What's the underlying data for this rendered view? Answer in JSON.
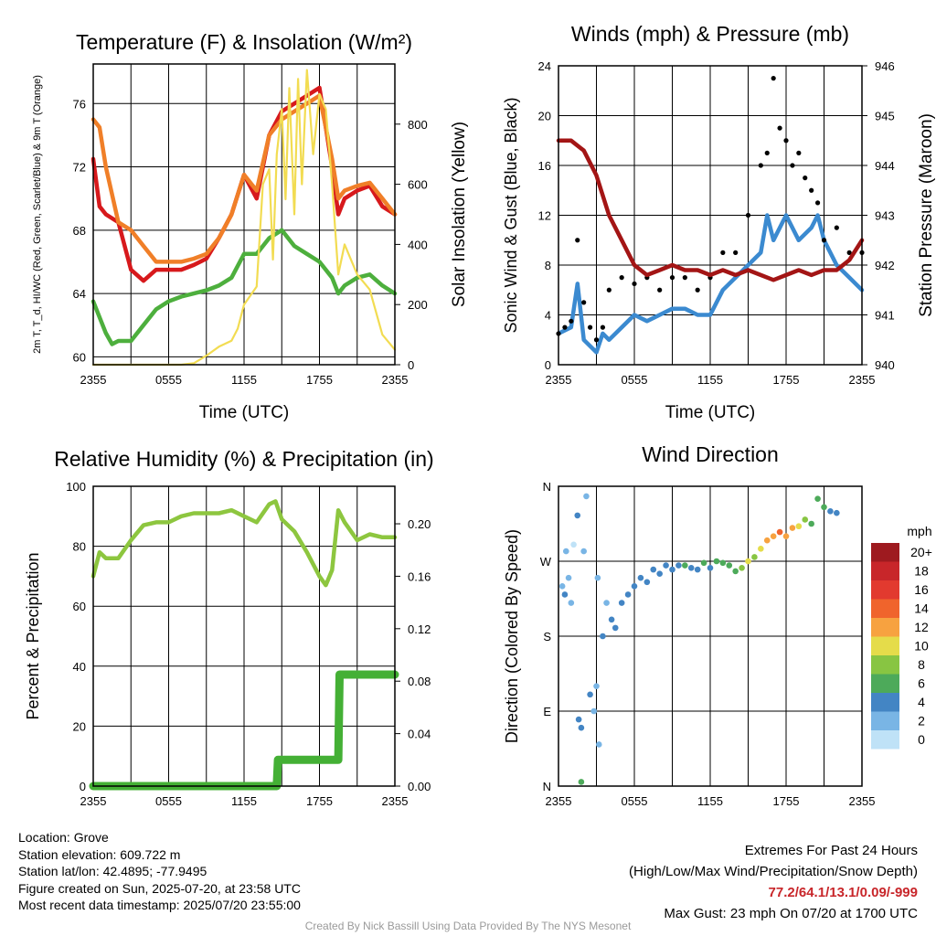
{
  "chart_data": [
    {
      "type": "line",
      "title": "Temperature (F) & Insolation (W/m²)",
      "xlabel": "Time (UTC)",
      "ylabel_left": "2m T, T_d, HI/WC (Red, Green, Scarlet/Blue) & 9m T (Orange)",
      "ylabel_right": "Solar Insolation (Yellow)",
      "x_ticks": [
        "2355",
        "0555",
        "1155",
        "1755",
        "2355"
      ],
      "y_ticks_left": [
        60,
        64,
        68,
        72,
        76
      ],
      "y_ticks_right": [
        0,
        200,
        400,
        600,
        800
      ],
      "ylim_left": [
        59.5,
        78.5
      ],
      "ylim_right": [
        0,
        1000
      ],
      "xlim": [
        0,
        24
      ],
      "grid": true,
      "series": [
        {
          "axis": "left",
          "color": "#d7191c",
          "x": [
            0,
            0.5,
            1,
            2,
            3,
            4,
            5,
            6,
            7,
            8,
            9,
            10,
            11,
            12,
            13,
            14,
            15,
            16,
            17,
            18,
            19,
            19.5,
            20,
            21,
            22,
            23,
            24
          ],
          "y": [
            72.5,
            69.5,
            69,
            68.5,
            65.5,
            64.8,
            65.5,
            65.5,
            65.5,
            65.8,
            66.2,
            67.5,
            69,
            71.5,
            70,
            74,
            75.5,
            76,
            76.5,
            77,
            72,
            69,
            70,
            70.5,
            70.8,
            69.5,
            69
          ]
        },
        {
          "axis": "left",
          "color": "#f07f28",
          "x": [
            0,
            0.5,
            1,
            2,
            3,
            4,
            5,
            6,
            7,
            8,
            9,
            10,
            11,
            12,
            13,
            14,
            15,
            16,
            17,
            18,
            19,
            19.5,
            20,
            21,
            22,
            23,
            24
          ],
          "y": [
            75,
            74.5,
            72,
            68.5,
            68,
            67,
            66,
            66,
            66,
            66.2,
            66.5,
            67.5,
            69,
            71.5,
            70.5,
            74,
            75,
            75.5,
            76,
            76.5,
            72.5,
            70,
            70.5,
            70.8,
            71,
            70,
            69
          ]
        },
        {
          "axis": "left",
          "color": "#4daf3d",
          "x": [
            0,
            1,
            1.5,
            2,
            3,
            4,
            5,
            6,
            7,
            8,
            9,
            10,
            11,
            12,
            13,
            14,
            15,
            16,
            17,
            18,
            19,
            19.5,
            20,
            21,
            22,
            23,
            24
          ],
          "y": [
            63.5,
            61.5,
            60.8,
            61,
            61,
            62,
            63,
            63.5,
            63.8,
            64,
            64.2,
            64.5,
            65,
            66.5,
            66.5,
            67.5,
            68,
            67,
            66.5,
            66,
            65,
            64,
            64.5,
            65,
            65.2,
            64.5,
            64
          ]
        },
        {
          "axis": "right",
          "color": "#f2dc52",
          "x": [
            0,
            2,
            4,
            7,
            8,
            9,
            10,
            11,
            11.5,
            12,
            13,
            13.5,
            14,
            14.3,
            14.6,
            15,
            15.3,
            15.6,
            16,
            16.3,
            16.6,
            17,
            17.5,
            18,
            18.5,
            19,
            19.5,
            20,
            20.5,
            21,
            22,
            23,
            24
          ],
          "y": [
            0,
            0,
            0,
            0,
            5,
            30,
            60,
            80,
            120,
            200,
            260,
            600,
            650,
            350,
            700,
            850,
            550,
            920,
            500,
            950,
            600,
            980,
            700,
            900,
            850,
            600,
            300,
            400,
            350,
            300,
            250,
            100,
            50
          ]
        }
      ]
    },
    {
      "type": "line",
      "title": "Winds (mph) & Pressure (mb)",
      "xlabel": "Time (UTC)",
      "ylabel_left": "Sonic Wind & Gust (Blue, Black)",
      "ylabel_right": "Station Pressure (Maroon)",
      "x_ticks": [
        "2355",
        "0555",
        "1155",
        "1755",
        "2355"
      ],
      "y_ticks_left": [
        0,
        4,
        8,
        12,
        16,
        20,
        24
      ],
      "y_ticks_right": [
        940,
        941,
        942,
        943,
        944,
        945,
        946
      ],
      "ylim_left": [
        0,
        24
      ],
      "ylim_right": [
        940,
        946
      ],
      "xlim": [
        0,
        24
      ],
      "grid": true,
      "series": [
        {
          "axis": "left",
          "color": "#3b8ad0",
          "x": [
            0,
            1,
            1.5,
            2,
            3,
            3.5,
            4,
            5,
            6,
            7,
            8,
            9,
            10,
            11,
            12,
            13,
            14,
            15,
            16,
            16.5,
            17,
            18,
            19,
            20,
            20.5,
            21,
            22,
            23,
            24
          ],
          "y": [
            2.5,
            3,
            6.5,
            2,
            1,
            2.5,
            2,
            3,
            4,
            3.5,
            4,
            4.5,
            4.5,
            4,
            4,
            6,
            7,
            8,
            9,
            12,
            10,
            12,
            10,
            11,
            12,
            10,
            8,
            7,
            6
          ]
        },
        {
          "axis": "left",
          "color": "#000000",
          "mode": "markers",
          "x": [
            0,
            0.5,
            1,
            1.5,
            2,
            2.5,
            3,
            3.5,
            4,
            5,
            6,
            7,
            8,
            9,
            10,
            11,
            12,
            13,
            14,
            15,
            16,
            16.5,
            17,
            17.5,
            18,
            18.5,
            19,
            19.5,
            20,
            20.5,
            21,
            22,
            23,
            24
          ],
          "y": [
            2.5,
            3,
            3.5,
            10,
            5,
            3,
            2,
            3,
            6,
            7,
            6.5,
            7,
            6,
            7,
            7,
            6,
            7,
            9,
            9,
            12,
            16,
            17,
            23,
            19,
            18,
            16,
            17,
            15,
            14,
            13,
            10,
            11,
            9,
            9
          ]
        },
        {
          "axis": "right",
          "color": "#a31515",
          "x": [
            0,
            1,
            2,
            3,
            4,
            5,
            6,
            7,
            8,
            9,
            10,
            11,
            12,
            13,
            14,
            15,
            16,
            17,
            18,
            19,
            20,
            21,
            22,
            23,
            24
          ],
          "y": [
            944.5,
            944.5,
            944.3,
            943.8,
            943,
            942.5,
            942,
            941.8,
            941.9,
            942,
            941.9,
            941.9,
            941.8,
            941.9,
            941.8,
            941.9,
            941.8,
            941.7,
            941.8,
            941.9,
            941.8,
            941.9,
            941.9,
            942.1,
            942.5
          ]
        }
      ]
    },
    {
      "type": "line",
      "title": "Relative Humidity (%) & Precipitation (in)",
      "xlabel": "",
      "ylabel_left": "Percent & Precipitation",
      "x_ticks": [
        "2355",
        "0555",
        "1155",
        "1755",
        "2355"
      ],
      "y_ticks_left": [
        0,
        20,
        40,
        60,
        80,
        100
      ],
      "y_ticks_right": [
        "0.00",
        "0.04",
        "0.08",
        "0.12",
        "0.16",
        "0.20"
      ],
      "ylim_left": [
        0,
        100
      ],
      "ylim_right": [
        0,
        0.2286
      ],
      "xlim": [
        0,
        24
      ],
      "grid": true,
      "series": [
        {
          "axis": "left",
          "color": "#8dc63f",
          "x": [
            0,
            0.5,
            1,
            2,
            3,
            4,
            5,
            6,
            7,
            8,
            9,
            10,
            11,
            12,
            13,
            14,
            14.5,
            15,
            16,
            17,
            18,
            18.5,
            19,
            19.5,
            20,
            21,
            22,
            23,
            24
          ],
          "y": [
            70,
            78,
            76,
            76,
            82,
            87,
            88,
            88,
            90,
            91,
            91,
            91,
            92,
            90,
            88,
            94,
            95,
            89,
            85,
            78,
            70,
            67,
            72,
            92,
            88,
            82,
            84,
            83,
            83
          ]
        },
        {
          "axis": "right",
          "color": "#44b035",
          "x": [
            0,
            14.6,
            14.7,
            19.5,
            19.6,
            24
          ],
          "y": [
            0,
            0,
            0.02,
            0.02,
            0.085,
            0.085
          ]
        }
      ]
    },
    {
      "type": "scatter",
      "title": "Wind Direction",
      "xlabel": "",
      "ylabel_left": "Direction (Colored By Speed)",
      "x_ticks": [
        "2355",
        "0555",
        "1155",
        "1755",
        "2355"
      ],
      "y_ticks_left": [
        "N",
        "E",
        "S",
        "W",
        "N"
      ],
      "ylim_left": [
        0,
        360
      ],
      "xlim": [
        0,
        24
      ],
      "grid": true,
      "legend_title": "mph",
      "legend_labels": [
        "20+",
        "18",
        "16",
        "14",
        "12",
        "10",
        "8",
        "6",
        "4",
        "2",
        "0"
      ],
      "legend_colors": [
        "#9e1a1f",
        "#c8262a",
        "#e23a2f",
        "#f0642c",
        "#f7a240",
        "#e5dc4a",
        "#88c542",
        "#4daa5a",
        "#4385c4",
        "#79b5e5",
        "#bfe2f7"
      ],
      "points": [
        [
          0.3,
          240,
          2
        ],
        [
          0.5,
          230,
          3
        ],
        [
          0.8,
          250,
          2
        ],
        [
          1.0,
          220,
          1
        ],
        [
          1.5,
          325,
          4
        ],
        [
          1.2,
          290,
          0
        ],
        [
          1.6,
          80,
          4
        ],
        [
          1.8,
          70,
          3
        ],
        [
          1.8,
          5,
          6
        ],
        [
          2.5,
          110,
          3
        ],
        [
          2.8,
          90,
          2
        ],
        [
          3.0,
          120,
          1
        ],
        [
          3.2,
          50,
          2
        ],
        [
          3.5,
          180,
          3
        ],
        [
          3.8,
          220,
          2
        ],
        [
          4.2,
          200,
          4
        ],
        [
          4.5,
          190,
          4
        ],
        [
          5,
          220,
          4
        ],
        [
          5.5,
          230,
          4
        ],
        [
          6,
          240,
          3
        ],
        [
          6.5,
          250,
          4
        ],
        [
          7,
          245,
          4
        ],
        [
          7.5,
          260,
          4
        ],
        [
          8,
          255,
          4
        ],
        [
          8.5,
          265,
          4
        ],
        [
          9,
          260,
          4
        ],
        [
          9.5,
          265,
          4
        ],
        [
          10,
          265,
          5
        ],
        [
          10.5,
          262,
          4
        ],
        [
          11,
          260,
          4
        ],
        [
          11.5,
          268,
          5
        ],
        [
          12,
          262,
          4
        ],
        [
          12.5,
          270,
          6
        ],
        [
          13,
          268,
          5
        ],
        [
          13.5,
          265,
          5
        ],
        [
          14,
          258,
          6
        ],
        [
          14.5,
          262,
          7
        ],
        [
          15,
          270,
          9
        ],
        [
          15.5,
          275,
          8
        ],
        [
          16,
          285,
          10
        ],
        [
          16.5,
          295,
          12
        ],
        [
          17,
          300,
          11
        ],
        [
          17.5,
          305,
          13
        ],
        [
          18,
          300,
          12
        ],
        [
          18.5,
          310,
          11
        ],
        [
          19,
          312,
          9
        ],
        [
          19.5,
          320,
          8
        ],
        [
          20,
          315,
          6
        ],
        [
          20.5,
          345,
          6
        ],
        [
          21,
          335,
          5
        ],
        [
          21.5,
          330,
          4
        ],
        [
          22,
          328,
          4
        ],
        [
          2.2,
          348,
          1
        ],
        [
          0.6,
          282,
          1
        ],
        [
          2.0,
          282,
          1
        ],
        [
          3.1,
          250,
          1
        ]
      ]
    }
  ],
  "info": {
    "location": "Location: Grove",
    "elevation": "Station elevation: 609.722 m",
    "latlon": "Station lat/lon: 42.4895; -77.9495",
    "created": "Figure created on Sun, 2025-07-20, at 23:58 UTC",
    "recent": "Most recent data timestamp: 2025/07/20 23:55:00"
  },
  "extremes": {
    "heading": "Extremes For Past 24 Hours",
    "subheading": "(High/Low/Max Wind/Precipitation/Snow Depth)",
    "values": "77.2/64.1/13.1/0.09/-999",
    "gust": "Max Gust: 23 mph On 07/20 at 1700 UTC"
  },
  "credit": "Created By Nick Bassill Using Data Provided By The NYS Mesonet"
}
